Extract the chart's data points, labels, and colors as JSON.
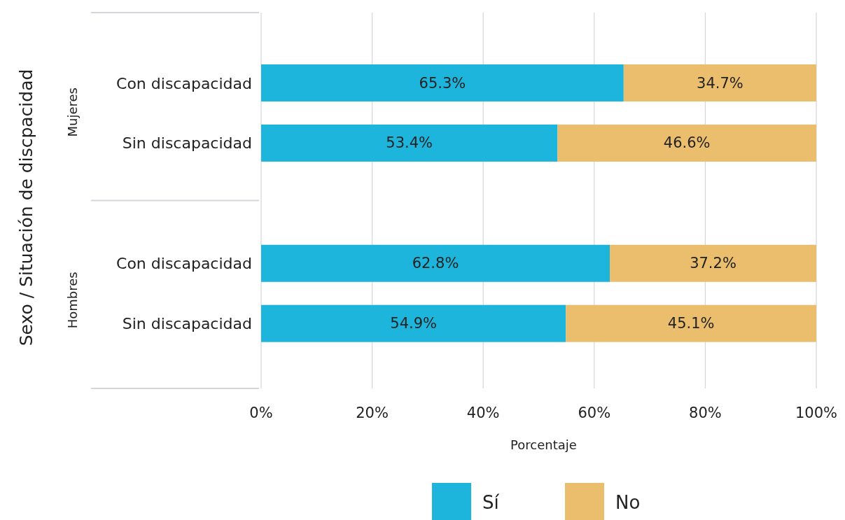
{
  "chart_data": {
    "type": "bar",
    "orientation": "horizontal",
    "stacked": true,
    "ylabel": "Sexo  / Situación de discpacidad",
    "xlabel": "Porcentaje",
    "categories": [
      "Con discapacidad",
      "Sin discapacidad",
      "Con discapacidad",
      "Sin discapacidad"
    ],
    "annotations": [
      "Mujeres",
      "Hombres"
    ],
    "series": [
      {
        "name": "Sí",
        "color": "#1eb5dc",
        "values": [
          65.3,
          53.4,
          62.8,
          54.9
        ],
        "value_labels": [
          "65.3%",
          "53.4%",
          "62.8%",
          "54.9%"
        ]
      },
      {
        "name": "No",
        "color": "#ebbe6e",
        "values": [
          34.7,
          46.6,
          37.2,
          45.1
        ],
        "value_labels": [
          "34.7%",
          "46.6%",
          "37.2%",
          "45.1%"
        ]
      }
    ],
    "xlim": [
      0,
      100
    ],
    "xticks": [
      {
        "value": 0,
        "label": "0%"
      },
      {
        "value": 20,
        "label": "20%"
      },
      {
        "value": 40,
        "label": "40%"
      },
      {
        "value": 60,
        "label": "60%"
      },
      {
        "value": 80,
        "label": "80%"
      },
      {
        "value": 100,
        "label": "100%"
      }
    ],
    "grid": "x",
    "legend": "bottom"
  }
}
